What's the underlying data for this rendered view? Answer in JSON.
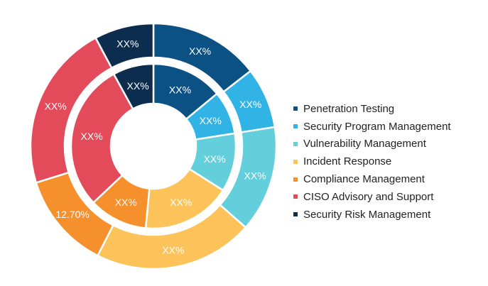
{
  "chart_data": {
    "type": "pie",
    "variant": "nested-donut",
    "title": "",
    "categories": [
      "Penetration Testing",
      "Security Program Management",
      "Vulnerability Management",
      "Incident Response",
      "Compliance Management",
      "CISO Advisory and Support",
      "Security Risk Management"
    ],
    "colors": [
      "#0c5183",
      "#32b3e6",
      "#63cfdd",
      "#fcc35a",
      "#f5902d",
      "#e34b5a",
      "#0d2d4f"
    ],
    "series": [
      {
        "ring": "outer",
        "values": [
          14.5,
          8,
          14,
          21,
          12.7,
          22,
          7.8
        ],
        "labels": [
          "XX%",
          "XX%",
          "XX%",
          "XX%",
          "12.70%",
          "XX%",
          "XX%"
        ]
      },
      {
        "ring": "inner",
        "values": [
          14,
          8.5,
          11.5,
          17.5,
          11.5,
          29,
          8
        ],
        "labels": [
          "XX%",
          "XX%",
          "XX%",
          "XX%",
          "XX%",
          "XX%",
          "XX%"
        ]
      }
    ],
    "legend": {
      "position": "right"
    }
  }
}
